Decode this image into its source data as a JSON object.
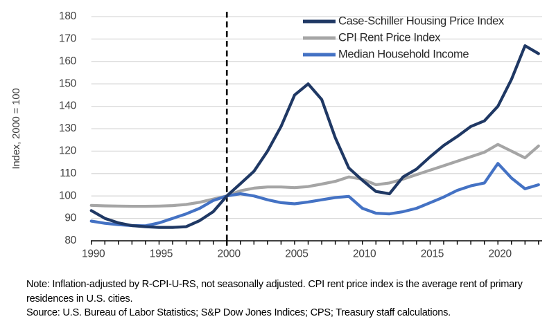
{
  "chart_data": {
    "type": "line",
    "title": "",
    "xlabel": "",
    "ylabel": "Index, 2000 = 100",
    "ylim": [
      80,
      180
    ],
    "ytick_step": 10,
    "xlim": [
      1990,
      2023.3
    ],
    "xticks_labeled": [
      1990,
      1995,
      2000,
      2005,
      2010,
      2015,
      2020
    ],
    "minor_ticks_every_year": true,
    "grid": true,
    "reference_line_x": 2000,
    "legend_position": "top-right",
    "years": [
      1990,
      1991,
      1992,
      1993,
      1994,
      1995,
      1996,
      1997,
      1998,
      1999,
      2000,
      2001,
      2002,
      2003,
      2004,
      2005,
      2006,
      2007,
      2008,
      2009,
      2010,
      2011,
      2012,
      2013,
      2014,
      2015,
      2016,
      2017,
      2018,
      2019,
      2020,
      2021,
      2022,
      2023
    ],
    "series": [
      {
        "name": "Case-Schiller Housing Price Index",
        "color": "#1F3864",
        "values": [
          93.5,
          90,
          88,
          86.8,
          86.3,
          86,
          86,
          86.3,
          89,
          93,
          100,
          105.5,
          111,
          120,
          131,
          145,
          150,
          143,
          126,
          112.5,
          107,
          102,
          101,
          108.5,
          112,
          117.5,
          122.5,
          126.5,
          131,
          133.5,
          140,
          152,
          167,
          163.5
        ]
      },
      {
        "name": "CPI Rent Price Index",
        "color": "#A5A5A5",
        "values": [
          95.8,
          95.6,
          95.5,
          95.4,
          95.4,
          95.5,
          95.7,
          96.2,
          97.2,
          98.6,
          100,
          102.3,
          103.5,
          104,
          104,
          103.7,
          104.2,
          105.3,
          106.5,
          108.5,
          107.5,
          105,
          105.8,
          107.5,
          109.5,
          111.5,
          113.5,
          115.5,
          117.5,
          119.5,
          123,
          120,
          117,
          122.3
        ]
      },
      {
        "name": "Median Household Income",
        "color": "#4472C4",
        "values": [
          88.8,
          87.8,
          87.2,
          86.8,
          86.7,
          88,
          90,
          92,
          94.5,
          98,
          100,
          101,
          100,
          98.3,
          97,
          96.5,
          97.3,
          98.3,
          99.3,
          99.8,
          94.5,
          92.3,
          92,
          93,
          94.5,
          97,
          99.5,
          102.5,
          104.5,
          105.8,
          114.5,
          108,
          103.2,
          105
        ]
      }
    ],
    "colors": {
      "grid": "#D9D9D9",
      "axis": "#000000",
      "tick_label": "#404040",
      "legend_label": "#262626",
      "reference_line": "#000000"
    }
  },
  "notes": {
    "note": "Note: Inflation-adjusted by R-CPI-U-RS, not seasonally adjusted. CPI rent price index is the average rent of primary residences in U.S. cities.",
    "source": "Source: U.S. Bureau of Labor Statistics; S&P Dow Jones Indices; CPS; Treasury staff calculations."
  }
}
